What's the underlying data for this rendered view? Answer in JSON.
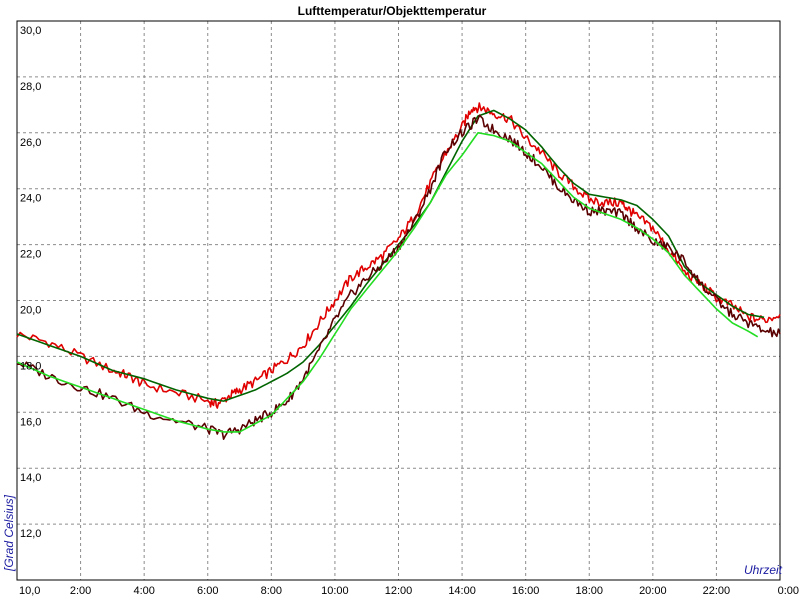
{
  "chart_data": {
    "type": "line",
    "title": "Lufttemperatur/Objekttemperatur",
    "xlabel": "Uhrzeit",
    "ylabel": "[Grad Celsius]",
    "x_tick_labels": [
      "2:00",
      "4:00",
      "6:00",
      "8:00",
      "10:00",
      "12:00",
      "14:00",
      "16:00",
      "18:00",
      "20:00",
      "22:00",
      "0:00"
    ],
    "x_tick_hours": [
      2,
      4,
      6,
      8,
      10,
      12,
      14,
      16,
      18,
      20,
      22,
      24
    ],
    "y_tick_labels": [
      "10,0",
      "12,0",
      "14,0",
      "16,0",
      "18,0",
      "20,0",
      "22,0",
      "24,0",
      "26,0",
      "28,0",
      "30,0"
    ],
    "y_tick_values": [
      10,
      12,
      14,
      16,
      18,
      20,
      22,
      24,
      26,
      28,
      30
    ],
    "xlim": [
      0,
      24
    ],
    "ylim": [
      10,
      30
    ],
    "grid": true,
    "series": [
      {
        "color": "#e00000",
        "x": [
          0,
          1,
          2,
          3,
          3.5,
          4,
          5,
          6,
          6.3,
          6.7,
          7,
          7.5,
          8,
          8.5,
          9,
          9.5,
          10,
          10.5,
          11,
          11.5,
          12,
          12.5,
          13,
          13.5,
          14,
          14.3,
          14.6,
          15,
          15.5,
          16,
          16.5,
          17,
          17.5,
          18,
          18.5,
          19,
          19.2,
          19.5,
          20,
          20.5,
          21,
          21.5,
          22,
          22.5,
          23,
          23.5,
          24
        ],
        "y": [
          18.8,
          18.5,
          18.0,
          17.5,
          17.3,
          17.0,
          16.7,
          16.4,
          16.3,
          16.6,
          16.8,
          17.1,
          17.5,
          17.9,
          18.4,
          19.2,
          20.0,
          20.8,
          21.2,
          21.6,
          22.2,
          23.0,
          24.2,
          25.3,
          26.2,
          26.9,
          26.9,
          26.7,
          26.5,
          25.8,
          25.3,
          24.6,
          24.1,
          23.6,
          23.5,
          23.5,
          23.3,
          23.0,
          22.6,
          21.8,
          21.0,
          20.6,
          20.1,
          19.8,
          19.4,
          19.3,
          19.5
        ]
      },
      {
        "color": "#006400",
        "x": [
          0,
          1,
          2,
          3,
          4,
          5,
          6,
          6.5,
          7,
          7.5,
          8,
          8.5,
          9,
          9.5,
          10,
          10.5,
          11,
          11.5,
          12,
          12.5,
          13,
          13.5,
          14,
          14.5,
          15,
          15.5,
          16,
          16.5,
          17,
          17.5,
          18,
          18.5,
          19,
          19.5,
          20,
          20.5,
          21,
          21.5,
          22,
          22.5,
          23,
          23.5
        ],
        "y": [
          18.8,
          18.4,
          18.0,
          17.5,
          17.2,
          16.8,
          16.5,
          16.4,
          16.6,
          16.8,
          17.1,
          17.4,
          17.8,
          18.4,
          19.1,
          19.8,
          20.6,
          21.3,
          22.0,
          22.7,
          23.5,
          24.6,
          25.7,
          26.6,
          26.8,
          26.5,
          26.1,
          25.5,
          24.8,
          24.2,
          23.8,
          23.7,
          23.6,
          23.4,
          22.9,
          22.3,
          21.2,
          20.6,
          20.2,
          19.8,
          19.5,
          19.4
        ]
      },
      {
        "color": "#5a0000",
        "x": [
          0,
          1,
          2,
          3,
          4,
          5,
          6,
          6.5,
          7,
          7.5,
          8,
          8.5,
          9,
          9.5,
          10,
          10.5,
          11,
          11.5,
          12,
          12.5,
          13,
          13.5,
          14,
          14.5,
          15,
          15.5,
          16,
          16.5,
          17,
          17.5,
          18,
          18.5,
          19,
          19.5,
          20,
          20.5,
          21,
          21.5,
          22,
          22.5,
          23,
          23.5,
          24
        ],
        "y": [
          17.8,
          17.3,
          16.9,
          16.5,
          16.0,
          15.7,
          15.4,
          15.2,
          15.4,
          15.7,
          16.0,
          16.4,
          17.2,
          18.2,
          19.3,
          20.2,
          20.8,
          21.3,
          21.9,
          22.8,
          24.0,
          25.4,
          26.0,
          26.5,
          26.1,
          25.8,
          25.3,
          24.8,
          24.1,
          23.6,
          23.2,
          23.2,
          23.1,
          22.6,
          22.1,
          21.9,
          21.4,
          20.6,
          20.0,
          19.5,
          19.2,
          18.9,
          18.8
        ]
      },
      {
        "color": "#22dd22",
        "x": [
          0,
          1,
          2,
          3,
          4,
          5,
          6,
          6.5,
          7,
          7.5,
          8,
          8.5,
          9,
          9.5,
          10,
          10.5,
          11,
          11.5,
          12,
          12.5,
          13,
          13.5,
          14,
          14.5,
          15,
          15.5,
          16,
          16.5,
          17,
          17.5,
          18,
          18.5,
          19,
          19.5,
          20,
          20.5,
          21,
          21.5,
          22,
          22.5,
          23,
          23.3
        ],
        "y": [
          17.8,
          17.3,
          16.9,
          16.5,
          16.1,
          15.7,
          15.4,
          15.3,
          15.3,
          15.6,
          15.9,
          16.5,
          17.1,
          17.9,
          18.8,
          19.7,
          20.4,
          21.1,
          21.8,
          22.6,
          23.5,
          24.5,
          25.2,
          26.0,
          25.9,
          25.7,
          25.3,
          24.9,
          24.3,
          23.7,
          23.3,
          23.1,
          22.9,
          22.6,
          22.2,
          21.7,
          20.9,
          20.3,
          19.7,
          19.2,
          18.9,
          18.7
        ]
      }
    ]
  }
}
